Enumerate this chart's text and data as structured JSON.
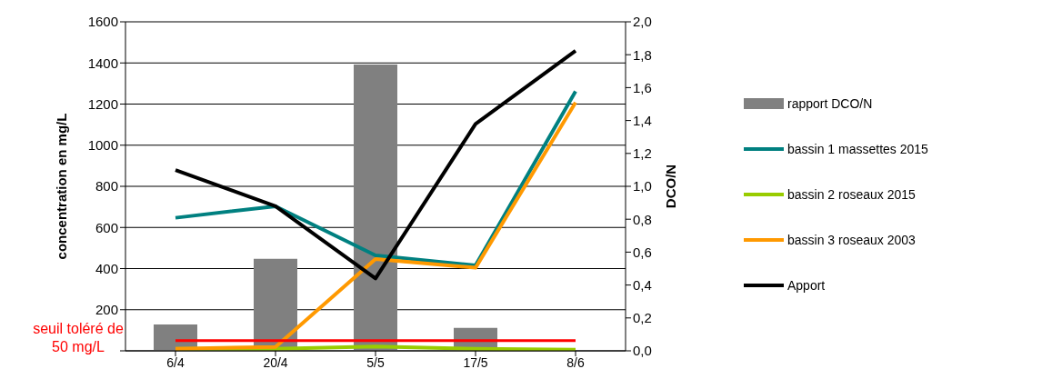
{
  "chart_data": {
    "type": "line",
    "ylabel": "concentration en mg/L",
    "y2label": "DCO/N",
    "categories": [
      "6/4",
      "20/4",
      "5/5",
      "17/5",
      "8/6"
    ],
    "series": [
      {
        "name": "rapport DCO/N",
        "type": "bar",
        "axis": "y2",
        "color": "#808080",
        "values": [
          0.16,
          0.56,
          1.74,
          0.14,
          0
        ]
      },
      {
        "name": "bassin 1 massettes 2015",
        "color": "#008080",
        "values": [
          647,
          703,
          464,
          415,
          1262
        ]
      },
      {
        "name": "bassin 2 roseaux 2015",
        "color": "#99cc00",
        "values": [
          10,
          10,
          21,
          10,
          6
        ]
      },
      {
        "name": "bassin 3 roseaux 2003",
        "color": "#ff9900",
        "values": [
          10,
          19,
          446,
          404,
          1208
        ]
      },
      {
        "name": "Apport",
        "color": "#000000",
        "values": [
          879,
          703,
          352,
          1103,
          1459
        ]
      }
    ],
    "ylim": [
      0,
      1600
    ],
    "yticks": [
      {
        "value": 0,
        "label": null
      },
      200,
      400,
      600,
      800,
      1000,
      1200,
      1400,
      1600
    ],
    "y2lim": [
      0,
      2
    ],
    "y2ticks": [
      {
        "value": 0,
        "label": "0,0"
      },
      {
        "value": 0.2,
        "label": "0,2"
      },
      {
        "value": 0.4,
        "label": "0,4"
      },
      {
        "value": 0.6,
        "label": "0,6"
      },
      {
        "value": 0.8,
        "label": "0,8"
      },
      {
        "value": 1,
        "label": "1,0"
      },
      {
        "value": 1.2,
        "label": "1,2"
      },
      {
        "value": 1.4,
        "label": "1,4"
      },
      {
        "value": 1.6,
        "label": "1,6"
      },
      {
        "value": 1.8,
        "label": "1,8"
      },
      {
        "value": 2,
        "label": "2,0"
      }
    ],
    "ref_lines": [
      {
        "axis": "y",
        "value": 50,
        "label": "seuil toléré de 50 mg/L",
        "color": "#ff0000",
        "line_style": "solid"
      }
    ],
    "grid": "y",
    "legend": "right",
    "marker": "none",
    "line_style": "solid"
  }
}
